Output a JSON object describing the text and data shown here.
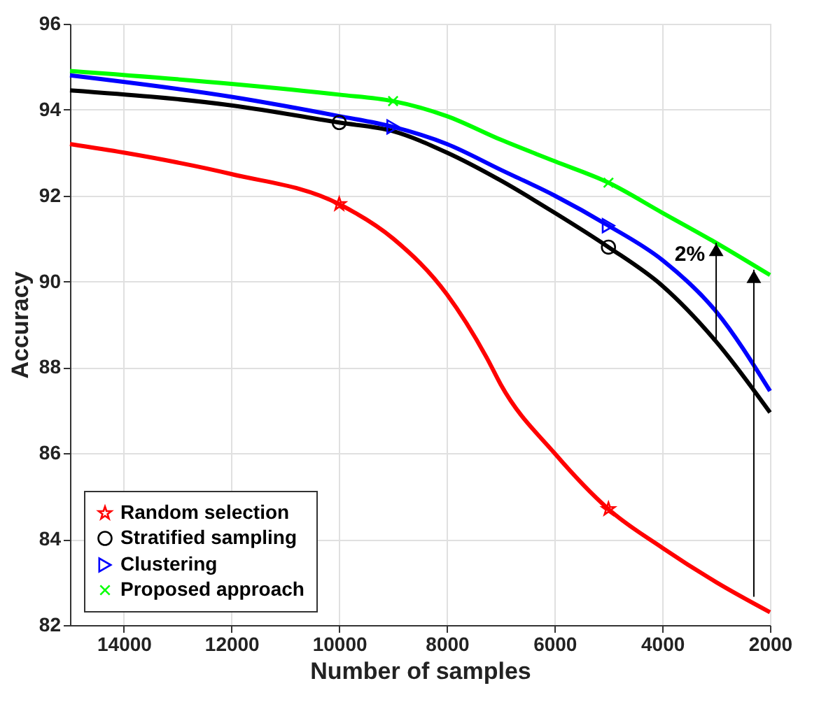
{
  "chart_data": {
    "type": "line",
    "xlabel": "Number of samples",
    "ylabel": "Accuracy",
    "xlim": [
      15000,
      2000
    ],
    "xticks": [
      14000,
      12000,
      10000,
      8000,
      6000,
      4000,
      2000
    ],
    "ylim": [
      82,
      96
    ],
    "yticks": [
      82,
      84,
      86,
      88,
      90,
      92,
      94,
      96
    ],
    "grid": true,
    "legend": "bottom left",
    "annotations": [
      {
        "text": "2%",
        "x": 3000,
        "y": 90.9
      }
    ],
    "series": [
      {
        "type": "line",
        "color": "#ff0000",
        "x": [
          15000,
          14000,
          12000,
          10000,
          9000,
          8000,
          7250,
          7000,
          6000,
          5000,
          4000,
          3000,
          2000
        ],
        "values": [
          93.2,
          93.0,
          92.5,
          91.8,
          91.0,
          89.7,
          88.2,
          87.6,
          86.0,
          84.7,
          83.8,
          83.0,
          82.3
        ]
      },
      {
        "type": "line",
        "color": "#000000",
        "x": [
          15000,
          12000,
          10000,
          9000,
          8000,
          7000,
          6000,
          5000,
          4000,
          3000,
          2000
        ],
        "values": [
          94.45,
          94.1,
          93.7,
          93.5,
          93.0,
          92.35,
          91.6,
          90.8,
          89.9,
          88.6,
          86.95
        ]
      },
      {
        "type": "line",
        "color": "#0000ff",
        "x": [
          15000,
          12000,
          10000,
          9000,
          8000,
          7000,
          6000,
          5000,
          4000,
          3000,
          2000
        ],
        "values": [
          94.8,
          94.3,
          93.85,
          93.6,
          93.2,
          92.6,
          92.0,
          91.3,
          90.5,
          89.3,
          87.45
        ]
      },
      {
        "type": "line",
        "color": "#00ff00",
        "x": [
          15000,
          12000,
          10000,
          9000,
          8000,
          7000,
          6000,
          5000,
          4000,
          3000,
          2000
        ],
        "values": [
          94.9,
          94.6,
          94.35,
          94.2,
          93.85,
          93.3,
          92.8,
          92.3,
          91.6,
          90.9,
          90.15
        ]
      },
      {
        "type": "scatter",
        "name": "Random selection",
        "color": "#ff0000",
        "marker": "star",
        "x": [
          10000,
          5000
        ],
        "values": [
          91.8,
          84.7
        ]
      },
      {
        "type": "scatter",
        "name": "Stratified sampling",
        "color": "#000000",
        "marker": "circle",
        "x": [
          10000,
          5000
        ],
        "values": [
          93.7,
          90.8
        ]
      },
      {
        "type": "scatter",
        "name": "Clustering",
        "color": "#0000ff",
        "marker": "triangle",
        "x": [
          9000,
          5000
        ],
        "values": [
          93.6,
          91.3
        ]
      },
      {
        "type": "scatter",
        "name": "Proposed approach",
        "color": "#00ff00",
        "marker": "cross",
        "x": [
          9000,
          5000
        ],
        "values": [
          94.2,
          92.3
        ]
      }
    ]
  }
}
